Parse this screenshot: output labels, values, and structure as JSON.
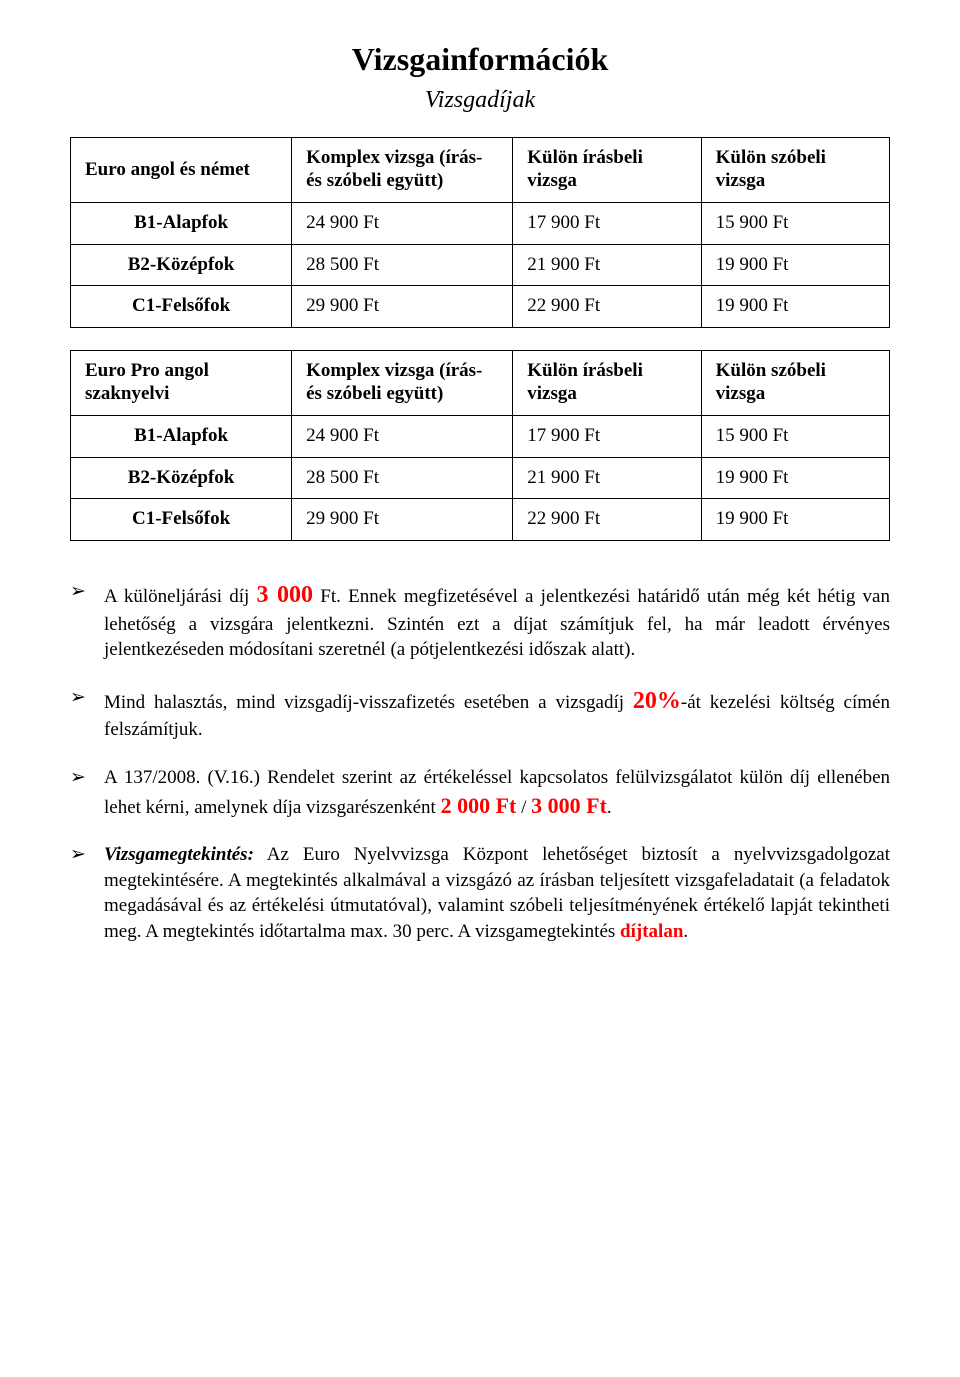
{
  "title": "Vizsgainformációk",
  "subtitle": "Vizsgadíjak",
  "tables": [
    {
      "header": {
        "col0": "Euro angol és német",
        "col1": "Komplex vizsga (írás- és szóbeli együtt)",
        "col2": "Külön írásbeli vizsga",
        "col3": "Külön szóbeli vizsga"
      },
      "rows": [
        {
          "label": "B1-Alapfok",
          "c1": "24 900 Ft",
          "c2": "17 900 Ft",
          "c3": "15 900 Ft"
        },
        {
          "label": "B2-Középfok",
          "c1": "28 500 Ft",
          "c2": "21 900 Ft",
          "c3": "19 900 Ft"
        },
        {
          "label": "C1-Felsőfok",
          "c1": "29 900 Ft",
          "c2": "22 900 Ft",
          "c3": "19 900 Ft"
        }
      ]
    },
    {
      "header": {
        "col0": "Euro Pro angol szaknyelvi",
        "col1": "Komplex vizsga (írás- és szóbeli együtt)",
        "col2": "Külön írásbeli vizsga",
        "col3": "Külön szóbeli vizsga"
      },
      "rows": [
        {
          "label": "B1-Alapfok",
          "c1": "24 900 Ft",
          "c2": "17 900 Ft",
          "c3": "15 900 Ft"
        },
        {
          "label": "B2-Középfok",
          "c1": "28 500 Ft",
          "c2": "21 900 Ft",
          "c3": "19 900 Ft"
        },
        {
          "label": "C1-Felsőfok",
          "c1": "29 900 Ft",
          "c2": "22 900 Ft",
          "c3": "19 900 Ft"
        }
      ]
    }
  ],
  "col_widths": [
    "27%",
    "27%",
    "23%",
    "23%"
  ],
  "bullets": {
    "b1": {
      "pre": "A különeljárási díj ",
      "fee": "3 000",
      "feeunit": " Ft.",
      "rest": " Ennek megfizetésével a jelentkezési határidő után még két hétig van lehetőség a vizsgára jelentkezni. Szintén ezt a díjat számítjuk fel, ha már leadott érvényes jelentkezéseden módosítani szeretnél (a pótjelentkezési időszak alatt)."
    },
    "b2": {
      "pre": "Mind halasztás, mind vizsgadíj-visszafizetés esetében a vizsgadíj ",
      "pct": "20%",
      "post": "-át kezelési költség címén felszámítjuk."
    },
    "b3": {
      "pre": "A 137/2008. (V.16.) Rendelet szerint az értékeléssel kapcsolatos felülvizsgálatot külön díj ellenében lehet kérni, amelynek díja vizsgarészenként ",
      "fee1": "2 000 Ft",
      "sep": " / ",
      "fee2": "3 000 Ft",
      "end": "."
    },
    "b4": {
      "lead": "Vizsgamegtekintés:",
      "body": " Az Euro Nyelvvizsga Központ lehetőséget biztosít a nyelvvizsgadolgozat megtekintésére. A megtekintés alkalmával a vizsgázó az írásban teljesített vizsgafeladatait (a feladatok megadásával és az értékelési útmutatóval), valamint szóbeli teljesítményének értékelő lapját tekintheti meg. A megtekintés időtartalma max. 30 perc. A vizsgamegtekintés ",
      "free": "díjtalan",
      "end": "."
    }
  },
  "colors": {
    "red": "#ff0000",
    "black": "#000000",
    "bg": "#ffffff"
  }
}
